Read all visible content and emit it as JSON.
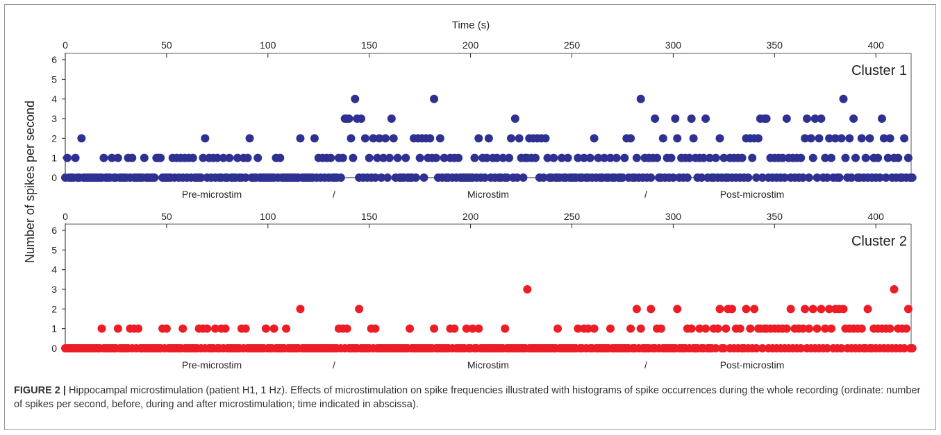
{
  "figure": {
    "label": "FIGURE 2 |",
    "caption": " Hippocampal microstimulation (patient H1, 1 Hz). Effects of microstimulation on spike frequencies illustrated with histograms of spike occurrences during the whole recording (ordinate: number of spikes per second, before, during and after microstimulation; time indicated in abscissa)."
  },
  "chart_data": {
    "type": "scatter",
    "xlabel": "Time (s)",
    "ylabel": "Number of spikes per second",
    "xlim": [
      0,
      418
    ],
    "ylim": [
      0,
      6
    ],
    "xticks": [
      0,
      50,
      100,
      150,
      200,
      250,
      300,
      350,
      400
    ],
    "yticks": [
      0,
      1,
      2,
      3,
      4,
      5,
      6
    ],
    "phase_labels": [
      "Pre-microstim",
      "/",
      "Microstim",
      "/",
      "Post-microstim"
    ],
    "panels": [
      {
        "name": "Cluster 1",
        "color": "#2e3192",
        "nonzero": [
          [
            1,
            1
          ],
          [
            5,
            1
          ],
          [
            8,
            2
          ],
          [
            19,
            1
          ],
          [
            23,
            1
          ],
          [
            26,
            1
          ],
          [
            31,
            1
          ],
          [
            33,
            1
          ],
          [
            39,
            1
          ],
          [
            45,
            1
          ],
          [
            46,
            1
          ],
          [
            47,
            1
          ],
          [
            53,
            1
          ],
          [
            55,
            1
          ],
          [
            57,
            1
          ],
          [
            59,
            1
          ],
          [
            61,
            1
          ],
          [
            63,
            1
          ],
          [
            68,
            1
          ],
          [
            69,
            2
          ],
          [
            71,
            1
          ],
          [
            73,
            1
          ],
          [
            75,
            1
          ],
          [
            78,
            1
          ],
          [
            81,
            1
          ],
          [
            85,
            1
          ],
          [
            88,
            1
          ],
          [
            90,
            1
          ],
          [
            91,
            2
          ],
          [
            95,
            1
          ],
          [
            104,
            1
          ],
          [
            106,
            1
          ],
          [
            116,
            2
          ],
          [
            123,
            2
          ],
          [
            125,
            1
          ],
          [
            127,
            1
          ],
          [
            129,
            1
          ],
          [
            131,
            1
          ],
          [
            135,
            1
          ],
          [
            137,
            1
          ],
          [
            138,
            3
          ],
          [
            139,
            3
          ],
          [
            140,
            3
          ],
          [
            141,
            2
          ],
          [
            142,
            1
          ],
          [
            143,
            4
          ],
          [
            144,
            3
          ],
          [
            146,
            3
          ],
          [
            148,
            2
          ],
          [
            150,
            1
          ],
          [
            152,
            2
          ],
          [
            154,
            1
          ],
          [
            155,
            2
          ],
          [
            157,
            1
          ],
          [
            158,
            2
          ],
          [
            160,
            1
          ],
          [
            161,
            3
          ],
          [
            162,
            2
          ],
          [
            164,
            1
          ],
          [
            168,
            1
          ],
          [
            172,
            2
          ],
          [
            174,
            2
          ],
          [
            175,
            1
          ],
          [
            176,
            2
          ],
          [
            178,
            2
          ],
          [
            179,
            1
          ],
          [
            180,
            2
          ],
          [
            181,
            1
          ],
          [
            182,
            4
          ],
          [
            183,
            1
          ],
          [
            185,
            2
          ],
          [
            187,
            1
          ],
          [
            190,
            1
          ],
          [
            192,
            1
          ],
          [
            194,
            1
          ],
          [
            202,
            1
          ],
          [
            204,
            2
          ],
          [
            206,
            1
          ],
          [
            208,
            1
          ],
          [
            209,
            2
          ],
          [
            211,
            1
          ],
          [
            213,
            1
          ],
          [
            216,
            1
          ],
          [
            219,
            1
          ],
          [
            220,
            2
          ],
          [
            222,
            3
          ],
          [
            224,
            2
          ],
          [
            225,
            1
          ],
          [
            227,
            1
          ],
          [
            228,
            1
          ],
          [
            229,
            2
          ],
          [
            230,
            1
          ],
          [
            231,
            2
          ],
          [
            232,
            1
          ],
          [
            233,
            2
          ],
          [
            235,
            2
          ],
          [
            237,
            2
          ],
          [
            238,
            1
          ],
          [
            241,
            1
          ],
          [
            245,
            1
          ],
          [
            248,
            1
          ],
          [
            253,
            1
          ],
          [
            256,
            1
          ],
          [
            259,
            1
          ],
          [
            261,
            2
          ],
          [
            263,
            1
          ],
          [
            266,
            1
          ],
          [
            269,
            1
          ],
          [
            272,
            1
          ],
          [
            276,
            1
          ],
          [
            277,
            2
          ],
          [
            279,
            2
          ],
          [
            282,
            1
          ],
          [
            284,
            4
          ],
          [
            286,
            1
          ],
          [
            288,
            1
          ],
          [
            290,
            1
          ],
          [
            291,
            3
          ],
          [
            292,
            1
          ],
          [
            295,
            2
          ],
          [
            297,
            1
          ],
          [
            299,
            1
          ],
          [
            301,
            3
          ],
          [
            302,
            2
          ],
          [
            304,
            1
          ],
          [
            306,
            1
          ],
          [
            308,
            1
          ],
          [
            309,
            3
          ],
          [
            310,
            2
          ],
          [
            311,
            1
          ],
          [
            313,
            1
          ],
          [
            315,
            1
          ],
          [
            316,
            3
          ],
          [
            318,
            1
          ],
          [
            321,
            1
          ],
          [
            323,
            2
          ],
          [
            325,
            1
          ],
          [
            328,
            1
          ],
          [
            330,
            1
          ],
          [
            332,
            1
          ],
          [
            334,
            1
          ],
          [
            336,
            2
          ],
          [
            338,
            2
          ],
          [
            339,
            1
          ],
          [
            340,
            2
          ],
          [
            342,
            2
          ],
          [
            343,
            3
          ],
          [
            345,
            3
          ],
          [
            346,
            3
          ],
          [
            348,
            1
          ],
          [
            350,
            1
          ],
          [
            352,
            1
          ],
          [
            354,
            1
          ],
          [
            356,
            3
          ],
          [
            357,
            1
          ],
          [
            359,
            1
          ],
          [
            361,
            1
          ],
          [
            363,
            1
          ],
          [
            365,
            2
          ],
          [
            366,
            3
          ],
          [
            368,
            2
          ],
          [
            369,
            1
          ],
          [
            370,
            3
          ],
          [
            372,
            2
          ],
          [
            373,
            3
          ],
          [
            375,
            1
          ],
          [
            377,
            2
          ],
          [
            378,
            1
          ],
          [
            380,
            2
          ],
          [
            383,
            2
          ],
          [
            384,
            4
          ],
          [
            385,
            1
          ],
          [
            387,
            2
          ],
          [
            389,
            3
          ],
          [
            390,
            1
          ],
          [
            393,
            2
          ],
          [
            395,
            1
          ],
          [
            397,
            2
          ],
          [
            399,
            1
          ],
          [
            401,
            1
          ],
          [
            403,
            3
          ],
          [
            404,
            2
          ],
          [
            406,
            1
          ],
          [
            407,
            2
          ],
          [
            409,
            1
          ],
          [
            411,
            1
          ],
          [
            414,
            2
          ],
          [
            416,
            1
          ]
        ]
      },
      {
        "name": "Cluster 2",
        "color": "#ee1c24",
        "nonzero": [
          [
            18,
            1
          ],
          [
            26,
            1
          ],
          [
            32,
            1
          ],
          [
            34,
            1
          ],
          [
            36,
            1
          ],
          [
            48,
            1
          ],
          [
            50,
            1
          ],
          [
            58,
            1
          ],
          [
            66,
            1
          ],
          [
            68,
            1
          ],
          [
            70,
            1
          ],
          [
            74,
            1
          ],
          [
            77,
            1
          ],
          [
            79,
            1
          ],
          [
            87,
            1
          ],
          [
            89,
            1
          ],
          [
            99,
            1
          ],
          [
            103,
            1
          ],
          [
            109,
            1
          ],
          [
            116,
            2
          ],
          [
            135,
            1
          ],
          [
            137,
            1
          ],
          [
            139,
            1
          ],
          [
            145,
            2
          ],
          [
            151,
            1
          ],
          [
            153,
            1
          ],
          [
            170,
            1
          ],
          [
            182,
            1
          ],
          [
            190,
            1
          ],
          [
            192,
            1
          ],
          [
            198,
            1
          ],
          [
            201,
            1
          ],
          [
            204,
            1
          ],
          [
            217,
            1
          ],
          [
            228,
            3
          ],
          [
            243,
            1
          ],
          [
            253,
            1
          ],
          [
            256,
            1
          ],
          [
            258,
            1
          ],
          [
            261,
            1
          ],
          [
            269,
            1
          ],
          [
            279,
            1
          ],
          [
            282,
            2
          ],
          [
            284,
            1
          ],
          [
            289,
            2
          ],
          [
            292,
            1
          ],
          [
            294,
            1
          ],
          [
            302,
            2
          ],
          [
            307,
            1
          ],
          [
            309,
            1
          ],
          [
            313,
            1
          ],
          [
            316,
            1
          ],
          [
            320,
            1
          ],
          [
            322,
            1
          ],
          [
            323,
            2
          ],
          [
            326,
            1
          ],
          [
            327,
            2
          ],
          [
            329,
            2
          ],
          [
            331,
            1
          ],
          [
            333,
            1
          ],
          [
            336,
            2
          ],
          [
            338,
            1
          ],
          [
            340,
            2
          ],
          [
            342,
            1
          ],
          [
            343,
            1
          ],
          [
            345,
            1
          ],
          [
            346,
            1
          ],
          [
            348,
            1
          ],
          [
            350,
            1
          ],
          [
            352,
            1
          ],
          [
            354,
            1
          ],
          [
            356,
            1
          ],
          [
            358,
            2
          ],
          [
            360,
            1
          ],
          [
            362,
            1
          ],
          [
            364,
            1
          ],
          [
            365,
            2
          ],
          [
            367,
            1
          ],
          [
            369,
            2
          ],
          [
            371,
            1
          ],
          [
            373,
            2
          ],
          [
            375,
            1
          ],
          [
            377,
            2
          ],
          [
            378,
            1
          ],
          [
            380,
            2
          ],
          [
            382,
            2
          ],
          [
            384,
            2
          ],
          [
            385,
            1
          ],
          [
            387,
            1
          ],
          [
            389,
            1
          ],
          [
            391,
            1
          ],
          [
            393,
            1
          ],
          [
            396,
            2
          ],
          [
            399,
            1
          ],
          [
            401,
            1
          ],
          [
            403,
            1
          ],
          [
            405,
            1
          ],
          [
            407,
            1
          ],
          [
            409,
            3
          ],
          [
            411,
            1
          ],
          [
            413,
            1
          ],
          [
            415,
            1
          ],
          [
            416,
            2
          ]
        ]
      }
    ]
  }
}
